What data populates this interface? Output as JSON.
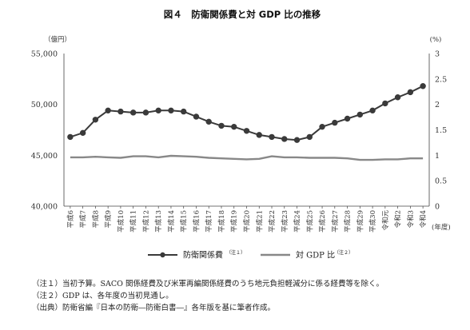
{
  "chart_data": {
    "type": "line",
    "title": "図４　防衛関係費と対 GDP 比の推移",
    "ylabel_left": "（億円）",
    "ylabel_right": "(%)",
    "xlabel": "(年度)",
    "ylim_left": [
      40000,
      55000
    ],
    "ylim_right": [
      0,
      3
    ],
    "yticks_left": [
      "40,000",
      "45,000",
      "50,000",
      "55,000"
    ],
    "yticks_right": [
      "0",
      "0.5",
      "1",
      "1.5",
      "2",
      "2.5",
      "3"
    ],
    "grid": false,
    "legend_position": "bottom",
    "categories": [
      "平成6",
      "平成7",
      "平成8",
      "平成9",
      "平成10",
      "平成11",
      "平成12",
      "平成13",
      "平成14",
      "平成15",
      "平成16",
      "平成17",
      "平成18",
      "平成19",
      "平成20",
      "平成21",
      "平成22",
      "平成23",
      "平成24",
      "平成25",
      "平成26",
      "平成27",
      "平成28",
      "平成29",
      "平成30",
      "令和元",
      "令和2",
      "令和3",
      "令和4"
    ],
    "series": [
      {
        "name": "防衛関係費",
        "note": "（注１）",
        "axis": "left",
        "color": "#3a3a3a",
        "marker": "circle",
        "values": [
          46800,
          47200,
          48500,
          49400,
          49300,
          49200,
          49200,
          49400,
          49400,
          49300,
          48800,
          48300,
          47900,
          47800,
          47400,
          47000,
          46800,
          46600,
          46500,
          46800,
          47800,
          48200,
          48600,
          49000,
          49400,
          50100,
          50700,
          51200,
          51800
        ]
      },
      {
        "name": "対 GDP 比",
        "note": "（注２）",
        "axis": "right",
        "color": "#888888",
        "marker": "none",
        "values": [
          0.96,
          0.96,
          0.97,
          0.96,
          0.95,
          0.98,
          0.98,
          0.96,
          0.99,
          0.98,
          0.97,
          0.95,
          0.94,
          0.93,
          0.92,
          0.93,
          0.98,
          0.96,
          0.96,
          0.95,
          0.95,
          0.95,
          0.94,
          0.91,
          0.91,
          0.92,
          0.92,
          0.94,
          0.94
        ]
      }
    ]
  },
  "notes": [
    "（注１）当初予算。SACO 関係経費及び米軍再編関係経費のうち地元負担軽減分に係る経費等を除く。",
    "（注２）GDP は、各年度の当初見通し。",
    "（出典）防衛省編『日本の防衛―防衛白書―』各年版を基に筆者作成。"
  ]
}
